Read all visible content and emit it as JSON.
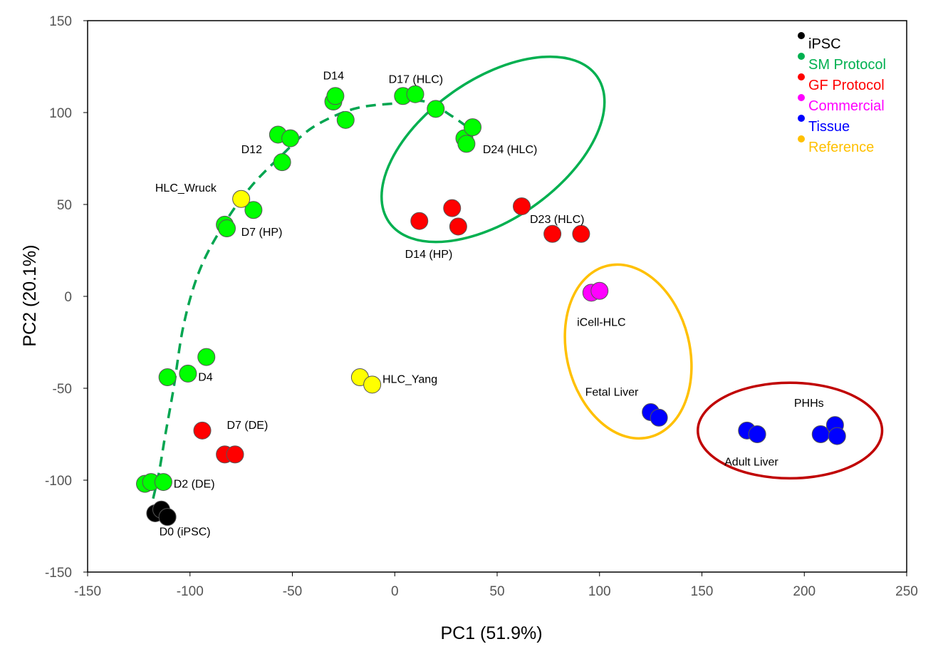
{
  "chart_data": {
    "type": "scatter",
    "xlabel": "PC1 (51.9%)",
    "ylabel": "PC2 (20.1%)",
    "xlim": [
      -150,
      250
    ],
    "ylim": [
      -150,
      150
    ],
    "xticks": [
      -150,
      -100,
      -50,
      0,
      50,
      100,
      150,
      200,
      250
    ],
    "yticks": [
      -150,
      -100,
      -50,
      0,
      50,
      100,
      150
    ],
    "grid": false,
    "legend_position": "top-right",
    "legend": [
      {
        "label": "iPSC",
        "color": "#000000"
      },
      {
        "label": "SM Protocol",
        "color": "#00b050"
      },
      {
        "label": "GF Protocol",
        "color": "#ff0000"
      },
      {
        "label": "Commercial",
        "color": "#ff00ff"
      },
      {
        "label": "Tissue",
        "color": "#0000ff"
      },
      {
        "label": "Reference",
        "color": "#ffc000"
      }
    ],
    "series": [
      {
        "group": "iPSC",
        "fill": "#000000",
        "points": [
          [
            -117,
            -118
          ],
          [
            -114,
            -116
          ],
          [
            -111,
            -120
          ]
        ]
      },
      {
        "group": "SM Protocol",
        "fill": "#00ff00",
        "points": [
          [
            -122,
            -102
          ],
          [
            -119,
            -101
          ],
          [
            -113,
            -101
          ],
          [
            -111,
            -44
          ],
          [
            -101,
            -42
          ],
          [
            -92,
            -33
          ],
          [
            -83,
            39
          ],
          [
            -82,
            37
          ],
          [
            -69,
            47
          ],
          [
            -55,
            73
          ],
          [
            -57,
            88
          ],
          [
            -51,
            86
          ],
          [
            -30,
            106
          ],
          [
            -29,
            109
          ],
          [
            -24,
            96
          ],
          [
            4,
            109
          ],
          [
            10,
            110
          ],
          [
            20,
            102
          ],
          [
            34,
            86
          ],
          [
            35,
            83
          ],
          [
            38,
            92
          ]
        ]
      },
      {
        "group": "GF Protocol",
        "fill": "#ff0000",
        "points": [
          [
            -94,
            -73
          ],
          [
            -83,
            -86
          ],
          [
            -78,
            -86
          ],
          [
            12,
            41
          ],
          [
            28,
            48
          ],
          [
            31,
            38
          ],
          [
            62,
            49
          ],
          [
            77,
            34
          ],
          [
            91,
            34
          ]
        ]
      },
      {
        "group": "Commercial",
        "fill": "#ff00ff",
        "points": [
          [
            96,
            2
          ],
          [
            100,
            3
          ]
        ]
      },
      {
        "group": "Tissue",
        "fill": "#0000ff",
        "points": [
          [
            125,
            -63
          ],
          [
            129,
            -66
          ],
          [
            172,
            -73
          ],
          [
            177,
            -75
          ],
          [
            208,
            -75
          ],
          [
            215,
            -70
          ],
          [
            216,
            -76
          ]
        ]
      },
      {
        "group": "Reference",
        "fill": "#ffff00",
        "points": [
          [
            -75,
            53
          ],
          [
            -17,
            -44
          ],
          [
            -11,
            -48
          ]
        ]
      }
    ],
    "trajectory": [
      [
        -118,
        -110
      ],
      [
        -115,
        -95
      ],
      [
        -112,
        -75
      ],
      [
        -108,
        -50
      ],
      [
        -103,
        -15
      ],
      [
        -95,
        15
      ],
      [
        -83,
        40
      ],
      [
        -70,
        60
      ],
      [
        -55,
        77
      ],
      [
        -40,
        92
      ],
      [
        -20,
        102
      ],
      [
        0,
        105
      ],
      [
        15,
        106
      ],
      [
        28,
        98
      ],
      [
        38,
        90
      ]
    ],
    "ellipses": [
      {
        "color": "#00b050",
        "cx": 48,
        "cy": 80,
        "rx": 62,
        "ry": 38,
        "angle_deg": -35
      },
      {
        "color": "#ffc000",
        "cx": 114,
        "cy": -30,
        "rx": 30,
        "ry": 48,
        "angle_deg": -14
      },
      {
        "color": "#c00000",
        "cx": 193,
        "cy": -73,
        "rx": 45,
        "ry": 26,
        "angle_deg": 0
      }
    ],
    "annotations": [
      {
        "text": "D0 (iPSC)",
        "x": -115,
        "y": -130
      },
      {
        "text": "D2 (DE)",
        "x": -108,
        "y": -104
      },
      {
        "text": "D4",
        "x": -96,
        "y": -46
      },
      {
        "text": "D7 (DE)",
        "x": -82,
        "y": -72
      },
      {
        "text": "D7 (HP)",
        "x": -75,
        "y": 33
      },
      {
        "text": "HLC_Wruck",
        "x": -117,
        "y": 57
      },
      {
        "text": "D12",
        "x": -75,
        "y": 78
      },
      {
        "text": "D14",
        "x": -35,
        "y": 118
      },
      {
        "text": "D17 (HLC)",
        "x": -3,
        "y": 116
      },
      {
        "text": "D24 (HLC)",
        "x": 43,
        "y": 78
      },
      {
        "text": "D14 (HP)",
        "x": 5,
        "y": 21
      },
      {
        "text": "D23 (HLC)",
        "x": 66,
        "y": 40
      },
      {
        "text": "HLC_Yang",
        "x": -6,
        "y": -47
      },
      {
        "text": "iCell-HLC",
        "x": 89,
        "y": -16
      },
      {
        "text": "Fetal Liver",
        "x": 93,
        "y": -54
      },
      {
        "text": "Adult Liver",
        "x": 161,
        "y": -92
      },
      {
        "text": "PHHs",
        "x": 195,
        "y": -60
      }
    ]
  }
}
